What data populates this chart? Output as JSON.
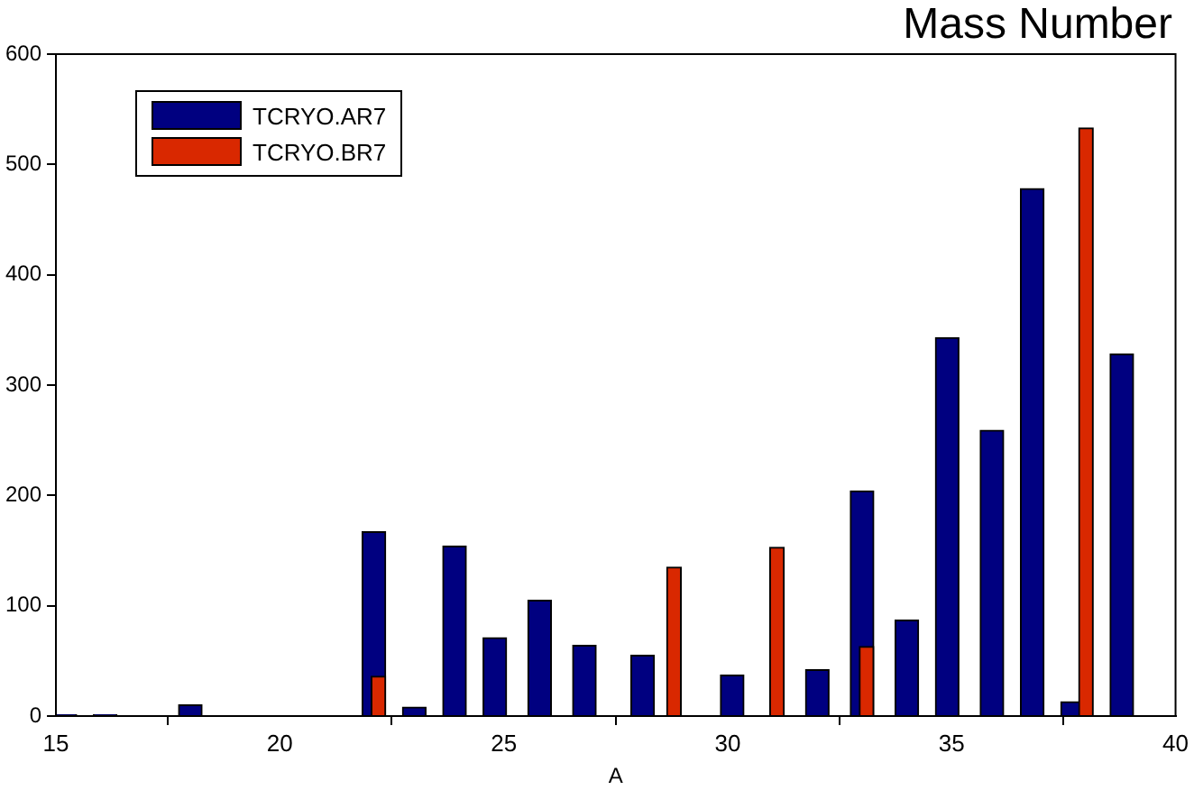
{
  "chart_data": {
    "type": "bar",
    "title": "Mass Number",
    "xlabel": "A",
    "series": [
      {
        "name": "TCRYO.AR7",
        "color": "#000080",
        "x": [
          15.2,
          16.1,
          18,
          22.1,
          23,
          23.9,
          24.8,
          25.8,
          26.8,
          28.1,
          30.1,
          32,
          33,
          34,
          34.9,
          35.9,
          36.8,
          37.7,
          38.8
        ],
        "values": [
          1,
          1,
          10,
          167,
          8,
          154,
          71,
          105,
          64,
          55,
          37,
          42,
          204,
          87,
          343,
          259,
          478,
          13,
          328
        ]
      },
      {
        "name": "TCRYO.BR7",
        "color": "#d92800",
        "x": [
          22.2,
          28.8,
          31.1,
          33.1,
          38
        ],
        "values": [
          36,
          135,
          153,
          63,
          533
        ]
      }
    ],
    "xlim": [
      15,
      40
    ],
    "xticks": [
      15,
      20,
      25,
      30,
      35,
      40
    ],
    "ylim": [
      0,
      600
    ],
    "yticks": [
      0,
      100,
      200,
      300,
      400,
      500,
      600
    ],
    "grid": false,
    "legend": "top left"
  }
}
